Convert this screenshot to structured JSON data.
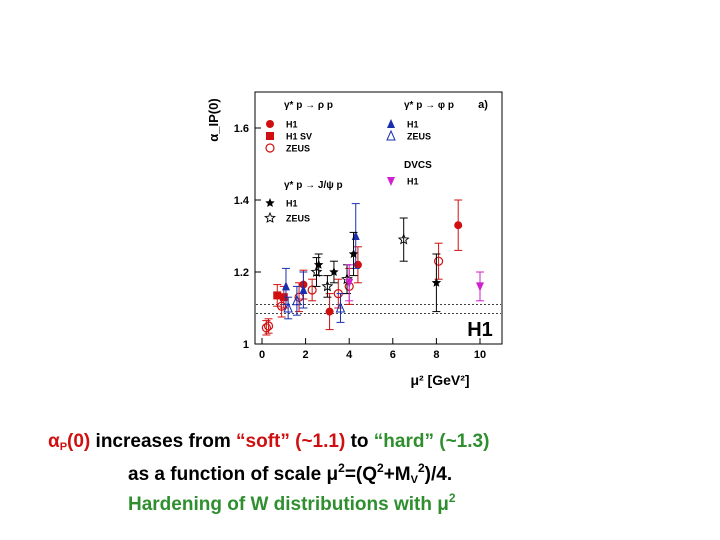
{
  "colors": {
    "red": "#d01010",
    "green": "#2f8f2f",
    "blue": "#1a2fb0",
    "magenta": "#d020d0",
    "black": "#000000"
  },
  "chart_data": {
    "type": "scatter",
    "xlabel": "μ² [GeV²]",
    "ylabel": "α_IP(0)",
    "xlim": [
      0,
      11
    ],
    "ylim": [
      1.0,
      1.7
    ],
    "xticks": [
      "0",
      "2",
      "4",
      "6",
      "8",
      "10"
    ],
    "xtick_values": [
      0,
      2,
      4,
      6,
      8,
      10
    ],
    "yticks": [
      "1",
      "1.2",
      "1.4",
      "1.6"
    ],
    "ytick_values": [
      1.0,
      1.2,
      1.4,
      1.6
    ],
    "reference_lines": [
      1.085,
      1.11
    ],
    "panel_label": "a)",
    "watermark": "H1",
    "legend": {
      "rho_header": "γ* p → ρ p",
      "phi_header": "γ* p → φ p",
      "jpsi_header": "γ* p → J/ψ p",
      "dvcs_header": "DVCS",
      "rho_entries": [
        {
          "label": "H1",
          "marker": "circle-filled",
          "color": "#d01010"
        },
        {
          "label": "H1 SV",
          "marker": "square-filled",
          "color": "#d01010"
        },
        {
          "label": "ZEUS",
          "marker": "circle-open",
          "color": "#d01010"
        }
      ],
      "phi_entries": [
        {
          "label": "H1",
          "marker": "triangle-filled",
          "color": "#1a2fb0"
        },
        {
          "label": "ZEUS",
          "marker": "triangle-open",
          "color": "#1a2fb0"
        }
      ],
      "dvcs_entries": [
        {
          "label": "H1",
          "marker": "triangle-down-filled",
          "color": "#d020d0"
        }
      ],
      "jpsi_entries": [
        {
          "label": "H1",
          "marker": "star-filled",
          "color": "#000000"
        },
        {
          "label": "ZEUS",
          "marker": "star-open",
          "color": "#000000"
        }
      ]
    },
    "series": [
      {
        "name": "rho H1",
        "marker": "circle-filled",
        "color": "#d01010",
        "points": [
          {
            "x": 1.9,
            "y": 1.165,
            "e": 0.04
          },
          {
            "x": 3.1,
            "y": 1.09,
            "e": 0.05
          },
          {
            "x": 4.4,
            "y": 1.22,
            "e": 0.05
          },
          {
            "x": 9.0,
            "y": 1.33,
            "e": 0.07
          }
        ]
      },
      {
        "name": "rho H1 SV",
        "marker": "square-filled",
        "color": "#d01010",
        "points": [
          {
            "x": 0.7,
            "y": 1.135,
            "e": 0.03
          },
          {
            "x": 1.0,
            "y": 1.13,
            "e": 0.03
          }
        ]
      },
      {
        "name": "rho ZEUS",
        "marker": "circle-open",
        "color": "#d01010",
        "points": [
          {
            "x": 0.2,
            "y": 1.045,
            "e": 0.02
          },
          {
            "x": 0.3,
            "y": 1.05,
            "e": 0.02
          },
          {
            "x": 0.9,
            "y": 1.105,
            "e": 0.03
          },
          {
            "x": 1.7,
            "y": 1.13,
            "e": 0.04
          },
          {
            "x": 2.3,
            "y": 1.15,
            "e": 0.03
          },
          {
            "x": 3.5,
            "y": 1.14,
            "e": 0.04
          },
          {
            "x": 4.0,
            "y": 1.16,
            "e": 0.05
          },
          {
            "x": 8.1,
            "y": 1.23,
            "e": 0.05
          }
        ]
      },
      {
        "name": "phi H1",
        "marker": "triangle-filled",
        "color": "#1a2fb0",
        "points": [
          {
            "x": 1.1,
            "y": 1.16,
            "e": 0.05
          },
          {
            "x": 1.9,
            "y": 1.15,
            "e": 0.05
          },
          {
            "x": 4.3,
            "y": 1.3,
            "e": 0.09
          }
        ]
      },
      {
        "name": "phi ZEUS",
        "marker": "triangle-open",
        "color": "#1a2fb0",
        "points": [
          {
            "x": 1.2,
            "y": 1.1,
            "e": 0.03
          },
          {
            "x": 1.6,
            "y": 1.12,
            "e": 0.04
          },
          {
            "x": 3.6,
            "y": 1.1,
            "e": 0.04
          }
        ]
      },
      {
        "name": "J/psi H1",
        "marker": "star-filled",
        "color": "#000000",
        "points": [
          {
            "x": 2.6,
            "y": 1.22,
            "e": 0.03
          },
          {
            "x": 3.3,
            "y": 1.2,
            "e": 0.03
          },
          {
            "x": 4.2,
            "y": 1.25,
            "e": 0.06
          },
          {
            "x": 8.0,
            "y": 1.17,
            "e": 0.08
          }
        ]
      },
      {
        "name": "J/psi ZEUS",
        "marker": "star-open",
        "color": "#000000",
        "points": [
          {
            "x": 2.5,
            "y": 1.2,
            "e": 0.04
          },
          {
            "x": 3.0,
            "y": 1.16,
            "e": 0.03
          },
          {
            "x": 3.9,
            "y": 1.18,
            "e": 0.04
          },
          {
            "x": 6.5,
            "y": 1.29,
            "e": 0.06
          }
        ]
      },
      {
        "name": "DVCS H1",
        "marker": "triangle-down-filled",
        "color": "#d020d0",
        "points": [
          {
            "x": 4.0,
            "y": 1.17,
            "e": 0.05
          },
          {
            "x": 10.0,
            "y": 1.16,
            "e": 0.04
          }
        ]
      }
    ]
  },
  "caption": {
    "line1_a": "α",
    "line1_sub": "P",
    "line1_b": "(0)",
    "line1_c": " increases from ",
    "line1_soft": "“soft” (~1.1)",
    "line1_d": " to ",
    "line1_hard": "“hard” (~1.3)",
    "line2_a": "as a function of scale μ",
    "line2_sup1": "2",
    "line2_b": "=(Q",
    "line2_sup2": "2",
    "line2_c": "+M",
    "line2_sub": "V",
    "line2_sup3": "2",
    "line2_d": ")/4.",
    "line3_a": "Hardening of W distributions with μ",
    "line3_sup": "2"
  }
}
